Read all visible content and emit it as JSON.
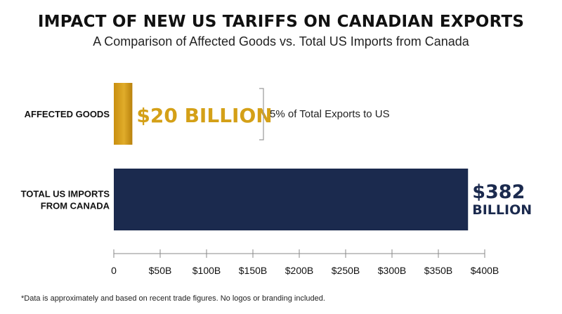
{
  "header": {
    "title": "IMPACT OF NEW US TARIFFS ON CANADIAN EXPORTS",
    "subtitle": "A Comparison of Affected Goods vs. Total US Imports from Canada"
  },
  "footnote": "*Data is approximately and based on recent trade figures. No logos or branding included.",
  "chart_data": {
    "type": "bar",
    "orientation": "horizontal",
    "title": "IMPACT OF NEW US TARIFFS ON CANADIAN EXPORTS",
    "subtitle": "A Comparison of Affected Goods vs. Total US Imports from Canada",
    "categories": [
      "AFFECTED GOODS",
      "TOTAL US IMPORTS FROM CANADA"
    ],
    "category_lines": [
      [
        "AFFECTED GOODS"
      ],
      [
        "TOTAL US IMPORTS",
        "FROM CANADA"
      ]
    ],
    "values": [
      20,
      382
    ],
    "value_labels": [
      [
        "$20 BILLION"
      ],
      [
        "$382",
        "BILLION"
      ]
    ],
    "colors": [
      "#D4A017",
      "#1B2A4E"
    ],
    "annotation": "5% of Total Exports to US",
    "xlim": [
      0,
      400
    ],
    "xticks": [
      0,
      50,
      100,
      150,
      200,
      250,
      300,
      350,
      400
    ],
    "xtick_labels": [
      "0",
      "$50B",
      "$100B",
      "$150B",
      "$200B",
      "$250B",
      "$300B",
      "$350B",
      "$400B"
    ],
    "xlabel": "",
    "ylabel": "",
    "grid": false,
    "legend": "none"
  }
}
